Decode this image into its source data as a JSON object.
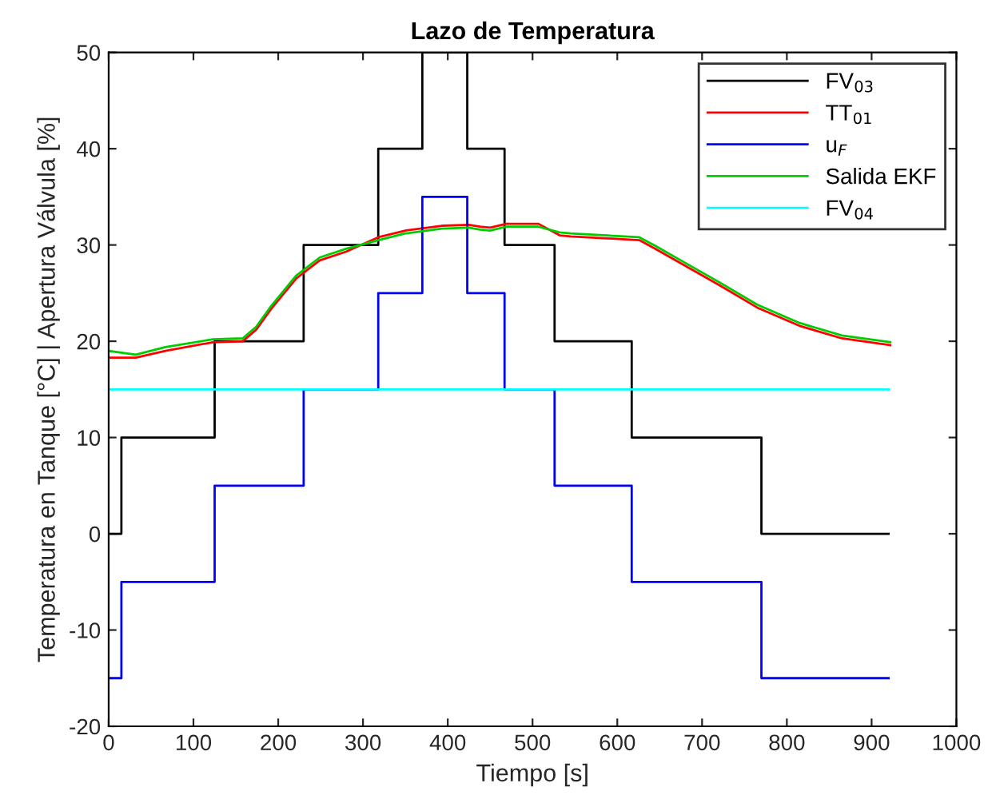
{
  "chart_data": {
    "type": "line",
    "title": "Lazo de Temperatura",
    "xlabel": "Tiempo [s]",
    "ylabel": "Temperatura en Tanque [°C] | Apertura Válvula [%]",
    "xlim": [
      0,
      1000
    ],
    "ylim": [
      -20,
      50
    ],
    "xticks": [
      0,
      100,
      200,
      300,
      400,
      500,
      600,
      700,
      800,
      900,
      1000
    ],
    "yticks": [
      -20,
      -10,
      0,
      10,
      20,
      30,
      40,
      50
    ],
    "grid": false,
    "legend": "top right",
    "line_style": "solid",
    "marker": "none",
    "series": [
      {
        "name": "FV$_{03}$",
        "type": "step",
        "color": "#000000",
        "x": [
          0,
          15,
          125,
          230,
          318,
          370,
          423,
          467,
          526,
          617,
          770,
          920
        ],
        "values": [
          0,
          10,
          20,
          30,
          40,
          50,
          40,
          30,
          20,
          10,
          0,
          0
        ]
      },
      {
        "name": "TT$_{01}$",
        "color": "#ff0000",
        "x": [
          0,
          32,
          67,
          123,
          158,
          174,
          192,
          221,
          249,
          280,
          318,
          350,
          393,
          425,
          438,
          450,
          469,
          507,
          532,
          545,
          626,
          645,
          677,
          721,
          765,
          815,
          865,
          922
        ],
        "values": [
          18.3,
          18.3,
          19.0,
          19.9,
          20.0,
          21.2,
          23.4,
          26.5,
          28.4,
          29.3,
          30.8,
          31.5,
          32.0,
          32.1,
          31.9,
          31.8,
          32.2,
          32.2,
          31.0,
          30.9,
          30.5,
          29.6,
          28.0,
          25.8,
          23.5,
          21.6,
          20.3,
          19.6
        ]
      },
      {
        "name": "u$_{F}$",
        "type": "step",
        "color": "#0000ff",
        "x": [
          0,
          15,
          125,
          230,
          318,
          370,
          423,
          467,
          526,
          617,
          770,
          920
        ],
        "values": [
          -15,
          -5,
          5,
          15,
          25,
          35,
          25,
          15,
          5,
          -5,
          -15,
          -15
        ]
      },
      {
        "name": "Salida EKF",
        "color": "#00cc00",
        "x": [
          0,
          32,
          67,
          123,
          158,
          174,
          192,
          221,
          249,
          280,
          318,
          350,
          393,
          425,
          438,
          450,
          469,
          507,
          532,
          545,
          626,
          645,
          677,
          721,
          765,
          815,
          865,
          922
        ],
        "values": [
          19.0,
          18.6,
          19.4,
          20.2,
          20.3,
          21.5,
          23.7,
          26.8,
          28.7,
          29.6,
          30.5,
          31.2,
          31.7,
          31.8,
          31.6,
          31.5,
          31.9,
          31.9,
          31.3,
          31.2,
          30.8,
          29.9,
          28.3,
          26.1,
          23.8,
          21.9,
          20.6,
          19.9
        ]
      },
      {
        "name": "FV$_{04}$",
        "color": "#00ffff",
        "x": [
          0,
          920
        ],
        "values": [
          15,
          15
        ]
      }
    ]
  }
}
